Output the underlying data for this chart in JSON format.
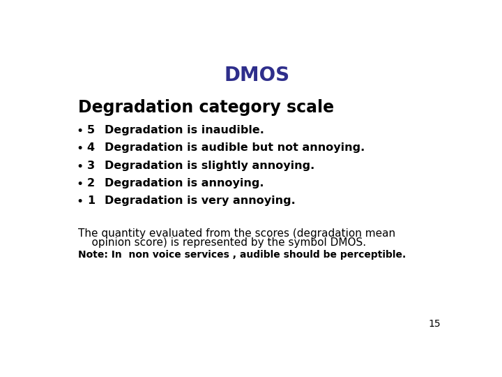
{
  "title": "DMOS",
  "title_color": "#2E2E8B",
  "title_fontsize": 20,
  "title_bold": true,
  "heading": "Degradation category scale",
  "heading_fontsize": 17,
  "heading_bold": true,
  "heading_color": "#000000",
  "bullet_items": [
    [
      "5",
      "Degradation is inaudible."
    ],
    [
      "4",
      "Degradation is audible but not annoying."
    ],
    [
      "3",
      "Degradation is slightly annoying."
    ],
    [
      "2",
      "Degradation is annoying."
    ],
    [
      "1",
      "Degradation is very annoying."
    ]
  ],
  "bullet_fontsize": 11.5,
  "bullet_color": "#000000",
  "body_line1": "The quantity evaluated from the scores (degradation mean",
  "body_line2": "    opinion score) is represented by the symbol DMOS.",
  "body_fontsize": 11,
  "body_color": "#000000",
  "note_text": "Note: In  non voice services , audible should be perceptible.",
  "note_fontsize": 10,
  "note_bold": true,
  "note_color": "#000000",
  "page_number": "15",
  "page_fontsize": 10,
  "background_color": "#ffffff"
}
